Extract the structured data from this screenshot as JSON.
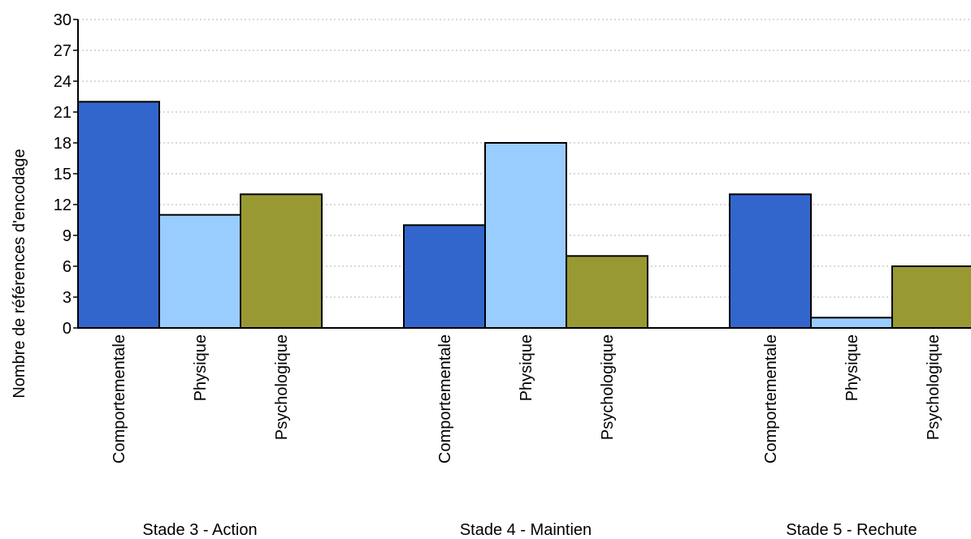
{
  "chart_data": {
    "type": "bar",
    "title": "",
    "ylabel": "Nombre de références d'encodage",
    "xlabel": "",
    "ylim": [
      0,
      30
    ],
    "yticks": [
      0,
      3,
      6,
      9,
      12,
      15,
      18,
      21,
      24,
      27,
      30
    ],
    "grid": true,
    "legend": "none",
    "groups": [
      {
        "label": "Stade 3 - Action",
        "bars": [
          {
            "label": "Comportementale",
            "value": 22
          },
          {
            "label": "Physique",
            "value": 11
          },
          {
            "label": "Psychologique",
            "value": 13
          }
        ]
      },
      {
        "label": "Stade 4 - Maintien",
        "bars": [
          {
            "label": "Comportementale",
            "value": 10
          },
          {
            "label": "Physique",
            "value": 18
          },
          {
            "label": "Psychologique",
            "value": 7
          }
        ]
      },
      {
        "label": "Stade 5 - Rechute",
        "bars": [
          {
            "label": "Comportementale",
            "value": 13
          },
          {
            "label": "Physique",
            "value": 1
          },
          {
            "label": "Psychologique",
            "value": 6
          }
        ]
      }
    ],
    "colors": {
      "Comportementale": "#3366cc",
      "Physique": "#99ccff",
      "Psychologique": "#999933"
    }
  }
}
